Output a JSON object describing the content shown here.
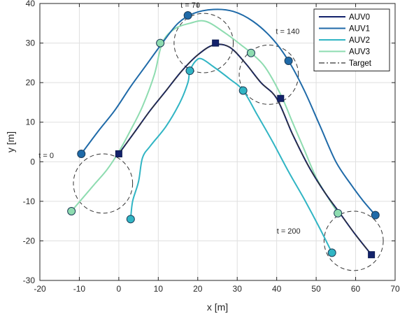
{
  "chart_data": {
    "type": "line",
    "xlabel": "x [m]",
    "ylabel": "y [m]",
    "xlim": [
      -20,
      70
    ],
    "ylim": [
      -30,
      40
    ],
    "xticks": [
      -20,
      -10,
      0,
      10,
      20,
      30,
      40,
      50,
      60,
      70
    ],
    "yticks": [
      -30,
      -20,
      -10,
      0,
      10,
      20,
      30,
      40
    ],
    "grid": true,
    "legend_position": "top-right",
    "series": [
      {
        "name": "AUV0",
        "color": "#13226b",
        "marker": "square",
        "x": [
          0,
          4,
          8,
          12,
          16,
          20,
          24,
          28,
          32,
          36,
          40,
          44,
          48,
          52,
          56,
          60,
          64
        ],
        "y": [
          2,
          7.5,
          13,
          18,
          23,
          27,
          29.5,
          29,
          25,
          20,
          16,
          7,
          -1,
          -7.5,
          -13,
          -18.5,
          -23.5
        ],
        "markers": [
          [
            0,
            2
          ],
          [
            24.5,
            30
          ],
          [
            41,
            16
          ],
          [
            64,
            -23.5
          ]
        ]
      },
      {
        "name": "AUV1",
        "color": "#1f6aa8",
        "marker": "circle",
        "x": [
          -9.5,
          -5,
          -1,
          3,
          7,
          11,
          15,
          19,
          24,
          29,
          34,
          39,
          43,
          47,
          51,
          55,
          59,
          62,
          65
        ],
        "y": [
          2,
          8,
          13,
          19,
          24.5,
          30,
          35,
          37.5,
          38.5,
          38,
          35.5,
          31,
          25.5,
          18,
          9,
          0,
          -6,
          -10,
          -13.5
        ],
        "markers": [
          [
            -9.5,
            2
          ],
          [
            17.5,
            37
          ],
          [
            43,
            25.5
          ],
          [
            65,
            -13.5
          ]
        ]
      },
      {
        "name": "AUV2",
        "color": "#31b5c4",
        "marker": "circle",
        "x": [
          3,
          3.5,
          5,
          6,
          8,
          12,
          15.5,
          17.5,
          18,
          19.5,
          21,
          24,
          28,
          31.5,
          35,
          39,
          43,
          47,
          51,
          54
        ],
        "y": [
          -14.5,
          -10,
          -5,
          1,
          4,
          9,
          15,
          20,
          23,
          25.5,
          26,
          24,
          21,
          18,
          12,
          5,
          -2.5,
          -9.5,
          -17,
          -23
        ],
        "markers": [
          [
            3,
            -14.5
          ],
          [
            18,
            23
          ],
          [
            31.5,
            18
          ],
          [
            54,
            -23
          ]
        ]
      },
      {
        "name": "AUV3",
        "color": "#8edcb0",
        "marker": "circle",
        "x": [
          -12,
          -9,
          -6,
          -3,
          0,
          3,
          6,
          9,
          11,
          14,
          18,
          22,
          27,
          31,
          33.5,
          37,
          41,
          44,
          47,
          50,
          53,
          55.5
        ],
        "y": [
          -12.5,
          -9,
          -5.5,
          -2,
          2.5,
          8,
          14,
          22,
          30,
          33.5,
          35,
          35.5,
          32.5,
          29.5,
          27.5,
          24,
          17,
          10,
          3,
          -4,
          -9,
          -13
        ],
        "markers": [
          [
            -12,
            -12.5
          ],
          [
            10.5,
            30
          ],
          [
            33.5,
            27.5
          ],
          [
            55.5,
            -13
          ]
        ]
      },
      {
        "name": "Target",
        "color": "#333333",
        "marker": "none",
        "dash": "dashdot",
        "x": [
          0,
          4,
          8,
          12,
          16,
          20,
          24,
          28,
          32,
          36,
          40,
          44,
          48,
          52,
          56,
          60,
          64
        ],
        "y": [
          2,
          7.5,
          13,
          18,
          23,
          27,
          29.5,
          29,
          25,
          20,
          16,
          7,
          -1,
          -7.5,
          -13,
          -18.5,
          -23.5
        ]
      }
    ],
    "formation_circles": [
      {
        "label": "t = 0",
        "cx": -4,
        "cy": -5.5,
        "r": 7.5
      },
      {
        "label": "t = 70",
        "cx": 21.5,
        "cy": 30,
        "r": 7.5
      },
      {
        "label": "t = 140",
        "cx": 38,
        "cy": 22,
        "r": 7.5
      },
      {
        "label": "t = 200",
        "cx": 59.5,
        "cy": -20,
        "r": 7.5
      }
    ]
  }
}
